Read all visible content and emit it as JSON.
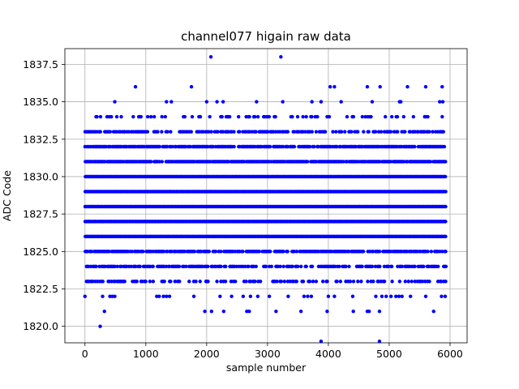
{
  "chart_data": {
    "type": "scatter",
    "title": "channel077 higain raw data",
    "xlabel": "sample number",
    "ylabel": "ADC Code",
    "xlim": [
      -330,
      6280
    ],
    "ylim": [
      1818.9,
      1838.55
    ],
    "xticks": [
      0,
      1000,
      2000,
      3000,
      4000,
      5000,
      6000
    ],
    "xtick_labels": [
      "0",
      "1000",
      "2000",
      "3000",
      "4000",
      "5000",
      "6000"
    ],
    "yticks": [
      1820.0,
      1822.5,
      1825.0,
      1827.5,
      1830.0,
      1832.5,
      1835.0,
      1837.5
    ],
    "ytick_labels": [
      "1820.0",
      "1822.5",
      "1825.0",
      "1827.5",
      "1830.0",
      "1832.5",
      "1835.0",
      "1837.5"
    ],
    "grid": true,
    "marker_color": "#0000ff",
    "n_samples": 6000,
    "series": [
      {
        "levels": [
          {
            "y": 1826,
            "x_ranges": [
              [
                0,
                5930
              ]
            ],
            "density": 1.0
          },
          {
            "y": 1827,
            "x_ranges": [
              [
                0,
                5930
              ]
            ],
            "density": 1.0
          },
          {
            "y": 1828,
            "x_ranges": [
              [
                0,
                5930
              ]
            ],
            "density": 1.0
          },
          {
            "y": 1829,
            "x_ranges": [
              [
                0,
                5930
              ]
            ],
            "density": 1.0
          },
          {
            "y": 1830,
            "x_ranges": [
              [
                0,
                5930
              ]
            ],
            "density": 1.0
          },
          {
            "y": 1831,
            "x_ranges": [
              [
                0,
                5930
              ]
            ],
            "density": 0.92
          },
          {
            "y": 1825,
            "x_ranges": [
              [
                0,
                5930
              ]
            ],
            "density": 0.85
          },
          {
            "y": 1832,
            "x_ranges": [
              [
                0,
                5930
              ]
            ],
            "density": 0.82
          },
          {
            "y": 1824,
            "x_ranges": [
              [
                20,
                5930
              ]
            ],
            "density": 0.62
          },
          {
            "y": 1833,
            "x_ranges": [
              [
                0,
                5930
              ]
            ],
            "density": 0.55
          },
          {
            "y": 1823,
            "x_ranges": [
              [
                20,
                5930
              ]
            ],
            "density": 0.32
          },
          {
            "y": 1834,
            "x_ranges": [
              [
                160,
                5900
              ]
            ],
            "density": 0.22
          }
        ],
        "points": [
          [
            0,
            1822
          ],
          [
            290,
            1822
          ],
          [
            410,
            1822
          ],
          [
            450,
            1822
          ],
          [
            490,
            1822
          ],
          [
            1180,
            1822
          ],
          [
            1220,
            1822
          ],
          [
            1290,
            1822
          ],
          [
            1340,
            1822
          ],
          [
            1390,
            1822
          ],
          [
            1790,
            1822
          ],
          [
            2220,
            1822
          ],
          [
            2410,
            1822
          ],
          [
            2600,
            1822
          ],
          [
            2720,
            1822
          ],
          [
            2840,
            1822
          ],
          [
            3030,
            1822
          ],
          [
            3340,
            1822
          ],
          [
            3600,
            1822
          ],
          [
            3660,
            1822
          ],
          [
            3720,
            1822
          ],
          [
            4000,
            1822
          ],
          [
            4100,
            1822
          ],
          [
            4400,
            1822
          ],
          [
            4780,
            1822
          ],
          [
            4880,
            1822
          ],
          [
            4950,
            1822
          ],
          [
            5030,
            1822
          ],
          [
            5110,
            1822
          ],
          [
            5160,
            1822
          ],
          [
            5210,
            1822
          ],
          [
            5350,
            1822
          ],
          [
            5600,
            1822
          ],
          [
            5860,
            1822
          ],
          [
            5920,
            1822
          ],
          [
            1970,
            1821
          ],
          [
            2080,
            1821
          ],
          [
            2280,
            1821
          ],
          [
            2660,
            1821
          ],
          [
            2700,
            1821
          ],
          [
            3140,
            1821
          ],
          [
            3550,
            1821
          ],
          [
            3980,
            1821
          ],
          [
            4410,
            1821
          ],
          [
            4640,
            1821
          ],
          [
            4670,
            1821
          ],
          [
            4840,
            1821
          ],
          [
            5730,
            1821
          ],
          [
            320,
            1821
          ],
          [
            250,
            1820
          ],
          [
            3880,
            1819
          ],
          [
            4840,
            1819
          ],
          [
            490,
            1835
          ],
          [
            1340,
            1835
          ],
          [
            1420,
            1835
          ],
          [
            2000,
            1835
          ],
          [
            2170,
            1835
          ],
          [
            2270,
            1835
          ],
          [
            2820,
            1835
          ],
          [
            3250,
            1835
          ],
          [
            3730,
            1835
          ],
          [
            3880,
            1835
          ],
          [
            4210,
            1835
          ],
          [
            4720,
            1835
          ],
          [
            5170,
            1835
          ],
          [
            5190,
            1835
          ],
          [
            5830,
            1835
          ],
          [
            5880,
            1835
          ],
          [
            830,
            1836
          ],
          [
            1750,
            1836
          ],
          [
            4030,
            1836
          ],
          [
            4100,
            1836
          ],
          [
            4640,
            1836
          ],
          [
            4850,
            1836
          ],
          [
            5300,
            1836
          ],
          [
            5600,
            1836
          ],
          [
            5870,
            1836
          ],
          [
            2070,
            1838
          ],
          [
            3220,
            1838
          ]
        ]
      }
    ]
  }
}
